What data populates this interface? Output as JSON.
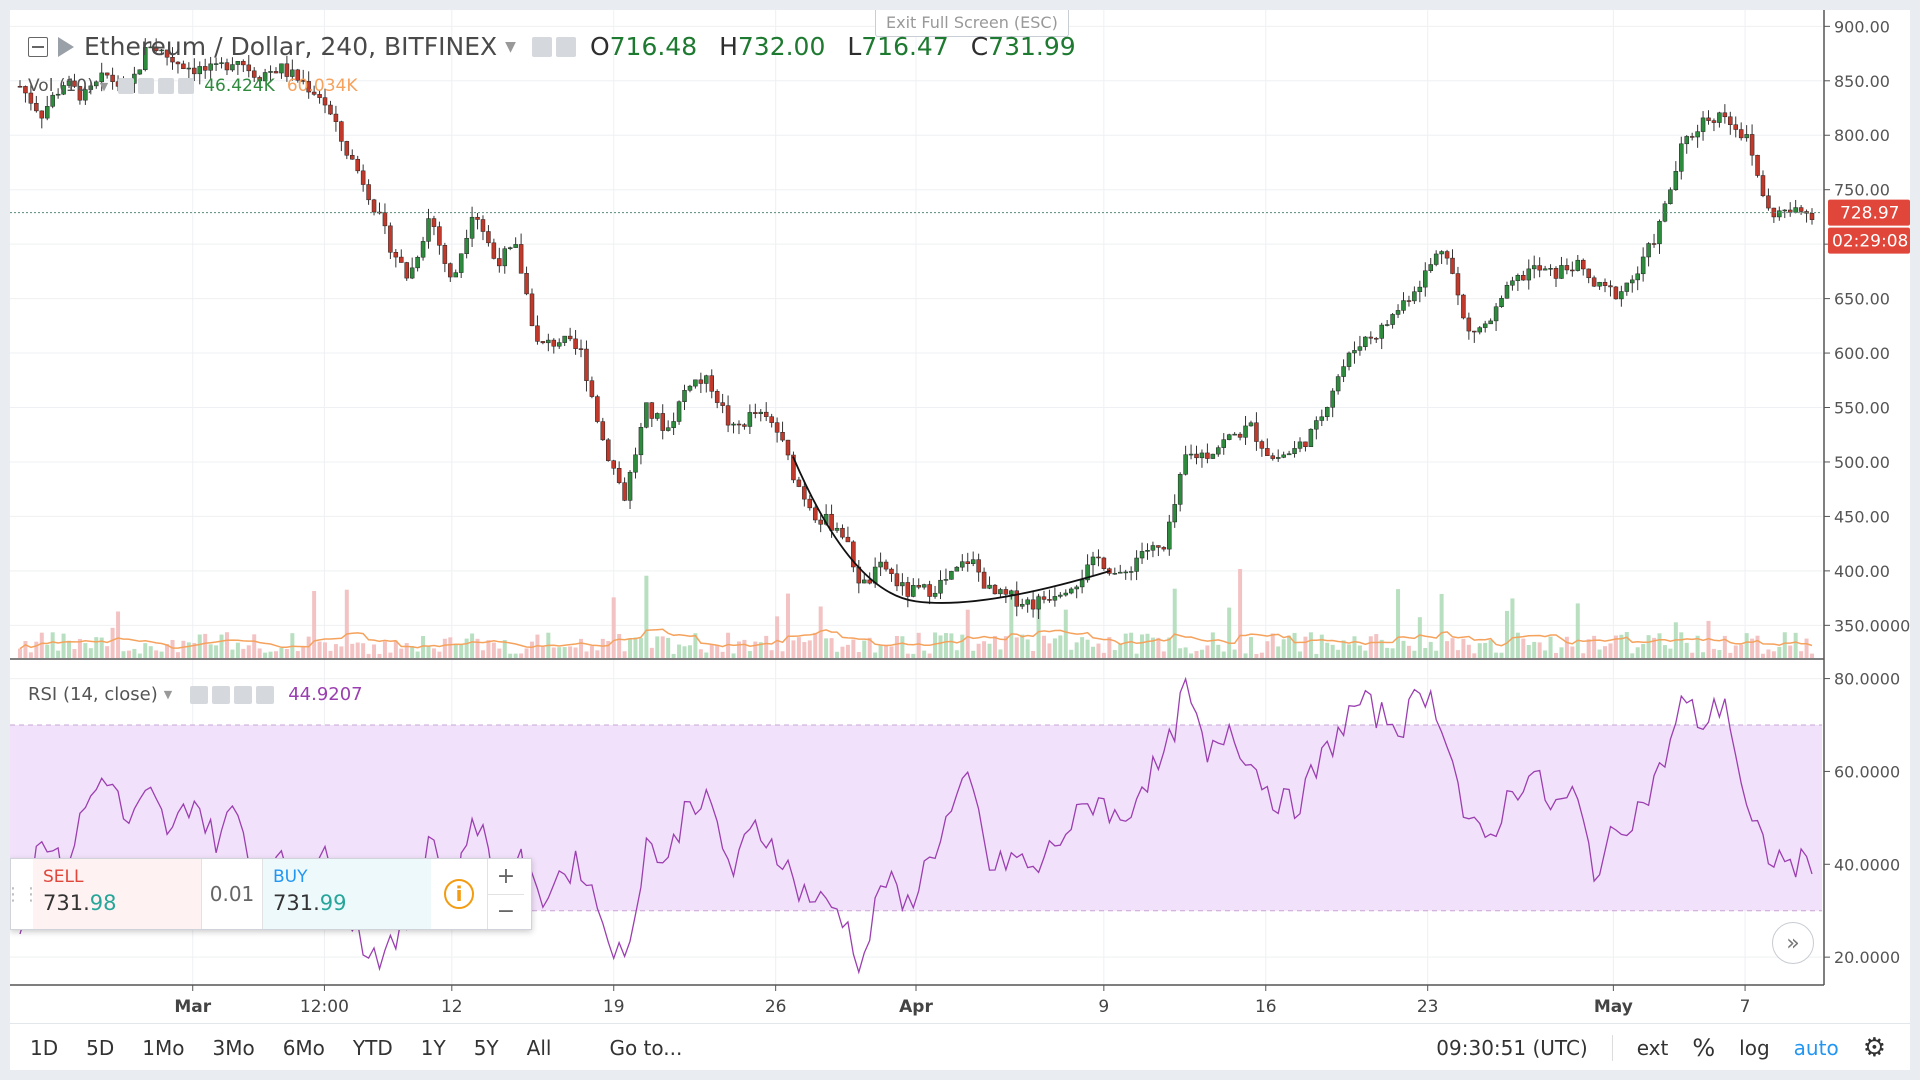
{
  "banner": {
    "exit_fullscreen": "Exit Full Screen (ESC)"
  },
  "legend": {
    "symbol": "Ethereum / Dollar, 240, BITFINEX",
    "open": "716.48",
    "high": "732.00",
    "low": "716.47",
    "close": "731.99",
    "open_prefix": "O",
    "high_prefix": "H",
    "low_prefix": "L",
    "close_prefix": "C"
  },
  "volume_legend": {
    "label": "Vol (10)",
    "value1": "46.424K",
    "value2": "60.034K"
  },
  "rsi_legend": {
    "label": "RSI (14, close)",
    "value": "44.9207"
  },
  "price_badges": {
    "last_price": "728.97",
    "countdown": "02:29:08"
  },
  "trade_panel": {
    "sell_label": "SELL",
    "sell_price_main": "731.",
    "sell_price_frac": "98",
    "quantity": "0.01",
    "buy_label": "BUY",
    "buy_price_main": "731.",
    "buy_price_frac": "99",
    "plus": "+",
    "minus": "−"
  },
  "bottom_bar": {
    "ranges": [
      "1D",
      "5D",
      "1Mo",
      "3Mo",
      "6Mo",
      "YTD",
      "1Y",
      "5Y",
      "All"
    ],
    "goto": "Go to...",
    "time": "09:30:51 (UTC)",
    "ext": "ext",
    "percent": "%",
    "log": "log",
    "auto": "auto"
  },
  "colors": {
    "up": "#2e8b3e",
    "down": "#c0392b",
    "rsi_line": "#9b3fb0",
    "rsi_band": "#f2e1fb",
    "volume_ma": "#f5a25d",
    "badge": "#e0463a",
    "auto": "#2196f3"
  },
  "chart_data": [
    {
      "type": "candlestick",
      "title": "Ethereum / Dollar, 240, BITFINEX",
      "ylim": [
        320,
        915
      ],
      "y_ticks": [
        350,
        400,
        450,
        500,
        550,
        600,
        650,
        700,
        750,
        800,
        850,
        900
      ],
      "y_tick_labels": [
        "350.0000",
        "400.00",
        "450.00",
        "500.00",
        "550.00",
        "600.00",
        "650.00",
        "700.00",
        "750.00",
        "800.00",
        "850.00",
        "900.00"
      ],
      "x_range": [
        0,
        83
      ],
      "x_ticks": [
        {
          "x": 8.0,
          "label": "Mar"
        },
        {
          "x": 14.1,
          "label": "12:00"
        },
        {
          "x": 20.0,
          "label": "12"
        },
        {
          "x": 27.5,
          "label": "19"
        },
        {
          "x": 35.0,
          "label": "26"
        },
        {
          "x": 41.5,
          "label": "Apr"
        },
        {
          "x": 50.2,
          "label": "9"
        },
        {
          "x": 57.7,
          "label": "16"
        },
        {
          "x": 65.2,
          "label": "23"
        },
        {
          "x": 73.8,
          "label": "May"
        },
        {
          "x": 79.9,
          "label": "7"
        }
      ],
      "close_anchors": [
        [
          0,
          845
        ],
        [
          1,
          820
        ],
        [
          2,
          848
        ],
        [
          3,
          835
        ],
        [
          4,
          855
        ],
        [
          5,
          840
        ],
        [
          6,
          885
        ],
        [
          7,
          870
        ],
        [
          8,
          862
        ],
        [
          9,
          858
        ],
        [
          10,
          872
        ],
        [
          11,
          855
        ],
        [
          12,
          862
        ],
        [
          13,
          850
        ],
        [
          14,
          835
        ],
        [
          15,
          790
        ],
        [
          16,
          755
        ],
        [
          17,
          705
        ],
        [
          18,
          668
        ],
        [
          19,
          728
        ],
        [
          20,
          662
        ],
        [
          21,
          735
        ],
        [
          22,
          685
        ],
        [
          23,
          695
        ],
        [
          24,
          605
        ],
        [
          25,
          612
        ],
        [
          26,
          600
        ],
        [
          27,
          520
        ],
        [
          28,
          468
        ],
        [
          29,
          548
        ],
        [
          30,
          530
        ],
        [
          31,
          575
        ],
        [
          32,
          572
        ],
        [
          33,
          528
        ],
        [
          34,
          545
        ],
        [
          35,
          532
        ],
        [
          36,
          480
        ],
        [
          37,
          448
        ],
        [
          38,
          440
        ],
        [
          39,
          385
        ],
        [
          40,
          405
        ],
        [
          41,
          380
        ],
        [
          42,
          382
        ],
        [
          43,
          392
        ],
        [
          44,
          412
        ],
        [
          45,
          378
        ],
        [
          46,
          375
        ],
        [
          47,
          370
        ],
        [
          48,
          382
        ],
        [
          49,
          392
        ],
        [
          50,
          412
        ],
        [
          51,
          392
        ],
        [
          52,
          420
        ],
        [
          53,
          418
        ],
        [
          54,
          505
        ],
        [
          55,
          508
        ],
        [
          56,
          522
        ],
        [
          57,
          532
        ],
        [
          58,
          503
        ],
        [
          59,
          510
        ],
        [
          60,
          530
        ],
        [
          61,
          578
        ],
        [
          62,
          610
        ],
        [
          63,
          620
        ],
        [
          64,
          645
        ],
        [
          65,
          670
        ],
        [
          66,
          702
        ],
        [
          67,
          618
        ],
        [
          68,
          626
        ],
        [
          69,
          660
        ],
        [
          70,
          678
        ],
        [
          71,
          672
        ],
        [
          72,
          682
        ],
        [
          73,
          660
        ],
        [
          74,
          655
        ],
        [
          75,
          675
        ],
        [
          76,
          720
        ],
        [
          77,
          790
        ],
        [
          78,
          815
        ],
        [
          79,
          820
        ],
        [
          80,
          795
        ],
        [
          81,
          729
        ],
        [
          82,
          729
        ]
      ],
      "last_price": 728.97
    },
    {
      "type": "bar",
      "title": "Vol (10)",
      "series": [
        {
          "name": "Vol (10)",
          "values": [
            46424,
            60034
          ]
        }
      ]
    },
    {
      "type": "line",
      "title": "RSI (14, close)",
      "ylim": [
        14,
        84
      ],
      "y_ticks": [
        20,
        40,
        60,
        80
      ],
      "y_tick_labels": [
        "20.0000",
        "40.0000",
        "60.0000",
        "80.0000"
      ],
      "band": [
        30,
        70
      ],
      "rsi_anchors": [
        [
          0,
          25
        ],
        [
          1,
          48
        ],
        [
          2,
          38
        ],
        [
          3,
          52
        ],
        [
          4,
          60
        ],
        [
          5,
          48
        ],
        [
          6,
          55
        ],
        [
          7,
          46
        ],
        [
          8,
          55
        ],
        [
          9,
          45
        ],
        [
          10,
          52
        ],
        [
          11,
          38
        ],
        [
          12,
          40
        ],
        [
          13,
          38
        ],
        [
          14,
          42
        ],
        [
          15,
          32
        ],
        [
          16,
          22
        ],
        [
          17,
          20
        ],
        [
          18,
          28
        ],
        [
          19,
          48
        ],
        [
          20,
          30
        ],
        [
          21,
          52
        ],
        [
          22,
          38
        ],
        [
          23,
          42
        ],
        [
          24,
          32
        ],
        [
          25,
          38
        ],
        [
          26,
          40
        ],
        [
          27,
          28
        ],
        [
          28,
          18
        ],
        [
          29,
          45
        ],
        [
          30,
          40
        ],
        [
          31,
          55
        ],
        [
          32,
          52
        ],
        [
          33,
          38
        ],
        [
          34,
          48
        ],
        [
          35,
          44
        ],
        [
          36,
          35
        ],
        [
          37,
          32
        ],
        [
          38,
          30
        ],
        [
          39,
          18
        ],
        [
          40,
          38
        ],
        [
          41,
          30
        ],
        [
          42,
          40
        ],
        [
          43,
          50
        ],
        [
          44,
          58
        ],
        [
          45,
          38
        ],
        [
          46,
          42
        ],
        [
          47,
          38
        ],
        [
          48,
          45
        ],
        [
          49,
          50
        ],
        [
          50,
          55
        ],
        [
          51,
          48
        ],
        [
          52,
          58
        ],
        [
          53,
          62
        ],
        [
          54,
          78
        ],
        [
          55,
          62
        ],
        [
          56,
          70
        ],
        [
          57,
          62
        ],
        [
          58,
          55
        ],
        [
          59,
          52
        ],
        [
          60,
          60
        ],
        [
          61,
          68
        ],
        [
          62,
          75
        ],
        [
          63,
          72
        ],
        [
          64,
          70
        ],
        [
          65,
          78
        ],
        [
          66,
          70
        ],
        [
          67,
          48
        ],
        [
          68,
          45
        ],
        [
          69,
          55
        ],
        [
          70,
          60
        ],
        [
          71,
          52
        ],
        [
          72,
          55
        ],
        [
          73,
          38
        ],
        [
          74,
          48
        ],
        [
          75,
          52
        ],
        [
          76,
          60
        ],
        [
          77,
          75
        ],
        [
          78,
          70
        ],
        [
          79,
          76
        ],
        [
          80,
          50
        ],
        [
          81,
          42
        ],
        [
          82,
          40
        ]
      ],
      "last_value": 44.9207
    }
  ]
}
